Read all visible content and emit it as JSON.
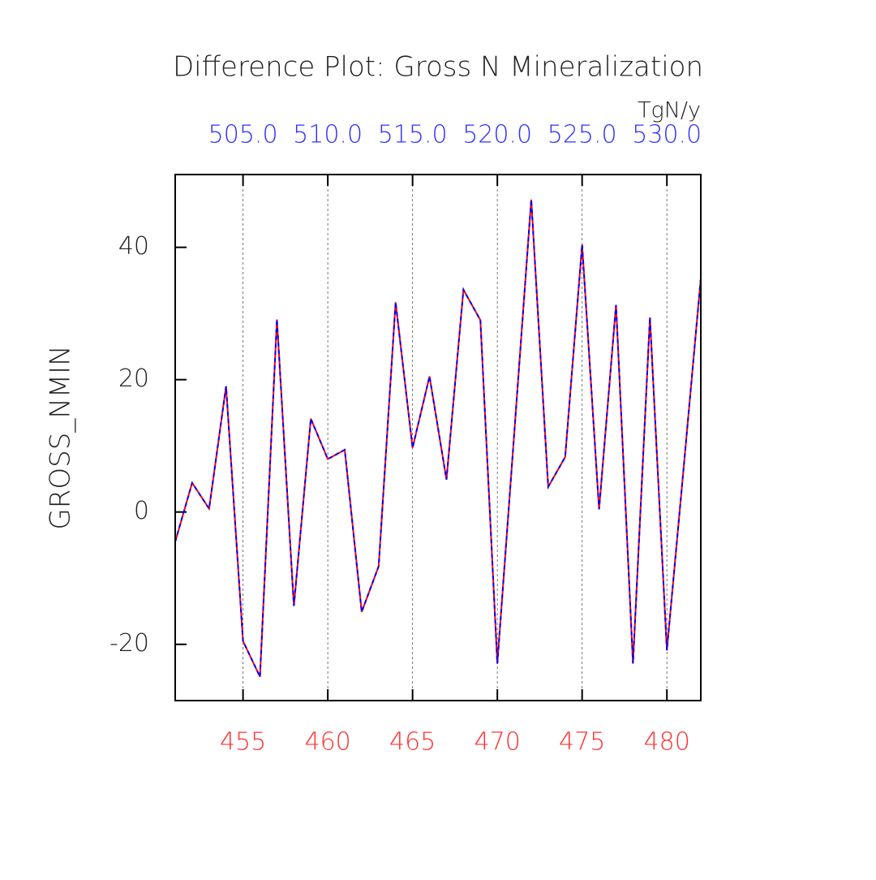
{
  "chart_data": {
    "type": "line",
    "title": "Difference Plot: Gross N Mineralization",
    "units": "TgN/y",
    "y_label": "GROSS_NMIN",
    "x": [
      451,
      452,
      453,
      454,
      455,
      456,
      457,
      458,
      459,
      460,
      461,
      462,
      463,
      464,
      465,
      466,
      467,
      468,
      469,
      470,
      471,
      472,
      473,
      474,
      475,
      476,
      477,
      478,
      479,
      480,
      481,
      482
    ],
    "series": [
      {
        "color": "#ff0000",
        "values": [
          -4.5,
          4.4,
          0.5,
          19,
          -19.5,
          -24.9,
          29.1,
          -14.2,
          14.1,
          8.0,
          9.4,
          -15.1,
          -8.2,
          31.7,
          9.7,
          20.5,
          4.9,
          33.6,
          29.0,
          -22.9,
          12,
          47.2,
          3.8,
          8.3,
          40.4,
          0.4,
          31.3,
          -22.9,
          29.4,
          -20.9,
          7,
          35.3
        ]
      },
      {
        "color": "#0000ff",
        "dashed": true,
        "values": [
          -4.5,
          4.4,
          0.5,
          19,
          -19.5,
          -24.9,
          29.1,
          -14.2,
          14.1,
          8.0,
          9.4,
          -15.1,
          -8.2,
          31.7,
          9.7,
          20.5,
          4.9,
          33.6,
          29.0,
          -22.9,
          12,
          47.2,
          3.8,
          8.3,
          40.4,
          0.4,
          31.3,
          -22.9,
          29.4,
          -20.9,
          7,
          35.3
        ]
      }
    ],
    "xlim": [
      451,
      482
    ],
    "xticks": [
      455,
      460,
      465,
      470,
      475,
      480
    ],
    "xtick_color": "#ff3030",
    "x2lim": [
      501,
      532
    ],
    "x2ticks": [
      {
        "value": 505,
        "label": "505.0"
      },
      {
        "value": 510,
        "label": "510.0"
      },
      {
        "value": 515,
        "label": "515.0"
      },
      {
        "value": 520,
        "label": "520.0"
      },
      {
        "value": 525,
        "label": "525.0"
      },
      {
        "value": 530,
        "label": "530.0"
      }
    ],
    "x2tick_color": "#3030ff",
    "ylim": [
      -28.5,
      51
    ],
    "yticks": [
      -20,
      0,
      20,
      40
    ],
    "grid": true
  }
}
